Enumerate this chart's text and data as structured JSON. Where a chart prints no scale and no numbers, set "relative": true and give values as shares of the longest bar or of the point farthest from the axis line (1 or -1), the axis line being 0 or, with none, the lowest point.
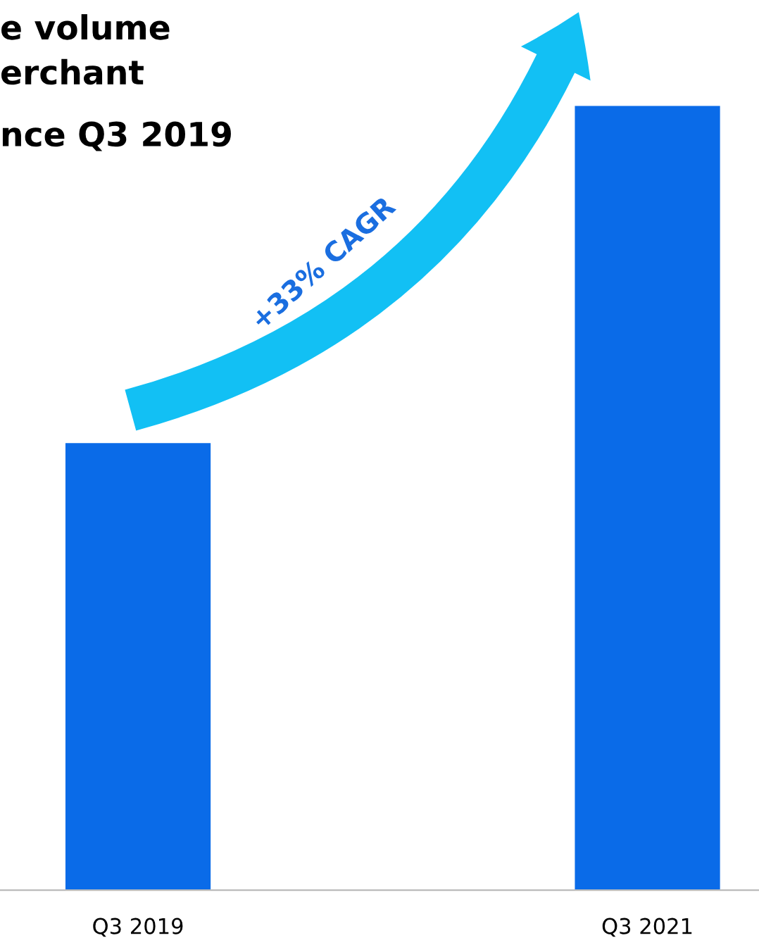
{
  "chart_data": {
    "type": "bar",
    "title": "e volume\nerchant",
    "subtitle": "nce Q3 2019",
    "categories": [
      "Q3 2019",
      "Q3 2021"
    ],
    "values": [
      0.57,
      1
    ],
    "relative": true,
    "color": "#0a6be8",
    "annotations": [
      "+33% CAGR"
    ],
    "grid": false,
    "legend": false
  }
}
